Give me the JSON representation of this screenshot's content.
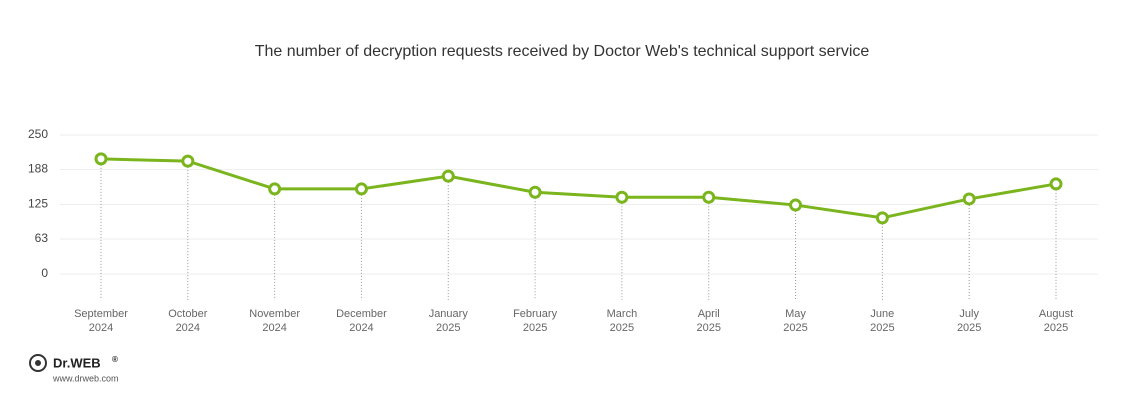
{
  "chart_data": {
    "type": "line",
    "title": "The number of decryption requests received by Doctor Web's technical support service",
    "categories": [
      [
        "September",
        "2024"
      ],
      [
        "October",
        "2024"
      ],
      [
        "November",
        "2024"
      ],
      [
        "December",
        "2024"
      ],
      [
        "January",
        "2025"
      ],
      [
        "February",
        "2025"
      ],
      [
        "March",
        "2025"
      ],
      [
        "April",
        "2025"
      ],
      [
        "May",
        "2025"
      ],
      [
        "June",
        "2025"
      ],
      [
        "July",
        "2025"
      ],
      [
        "August",
        "2025"
      ]
    ],
    "values": [
      207,
      203,
      153,
      153,
      176,
      147,
      138,
      138,
      124,
      101,
      135,
      162
    ],
    "color": "#7ab51d",
    "ylim": [
      0,
      250
    ],
    "yticks": [
      0,
      63,
      125,
      188,
      250
    ],
    "grid": true
  },
  "branding": {
    "name": "Dr.WEB",
    "mark": "®",
    "url": "www.drweb.com"
  }
}
